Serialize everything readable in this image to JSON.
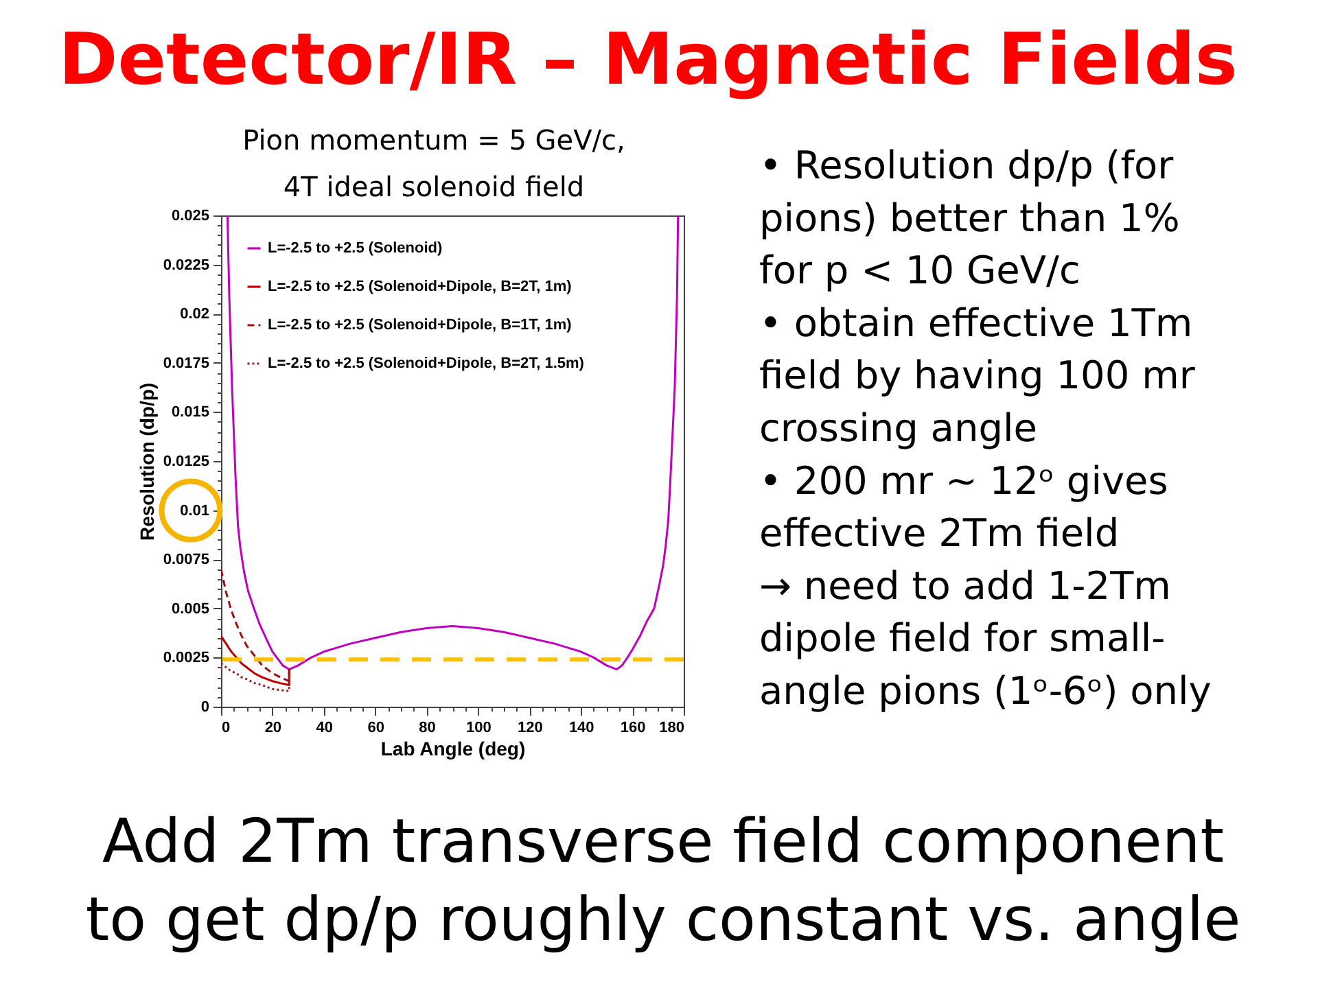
{
  "chart_data": {
    "type": "line",
    "title": "Detector/IR – Magnetic Fields",
    "subtitle": "Pion  momentum = 5 GeV/c,\n4T ideal solenoid field",
    "xlabel": "Lab Angle (deg)",
    "ylabel": "Resolution (dp/p)",
    "xlim": [
      0,
      180
    ],
    "ylim": [
      0,
      0.025
    ],
    "xticks": [
      0,
      {
        "value": 5,
        "label": null
      },
      {
        "value": 10,
        "label": null
      },
      {
        "value": 15,
        "label": null
      },
      20,
      {
        "value": 25,
        "label": null
      },
      {
        "value": 30,
        "label": null
      },
      {
        "value": 35,
        "label": null
      },
      40,
      {
        "value": 45,
        "label": null
      },
      {
        "value": 50,
        "label": null
      },
      {
        "value": 55,
        "label": null
      },
      60,
      {
        "value": 65,
        "label": null
      },
      {
        "value": 70,
        "label": null
      },
      {
        "value": 75,
        "label": null
      },
      80,
      {
        "value": 85,
        "label": null
      },
      {
        "value": 90,
        "label": null
      },
      {
        "value": 95,
        "label": null
      },
      100,
      {
        "value": 105,
        "label": null
      },
      {
        "value": 110,
        "label": null
      },
      {
        "value": 115,
        "label": null
      },
      120,
      {
        "value": 125,
        "label": null
      },
      {
        "value": 130,
        "label": null
      },
      {
        "value": 135,
        "label": null
      },
      140,
      {
        "value": 145,
        "label": null
      },
      {
        "value": 150,
        "label": null
      },
      {
        "value": 155,
        "label": null
      },
      160,
      {
        "value": 165,
        "label": null
      },
      {
        "value": 170,
        "label": null
      },
      {
        "value": 175,
        "label": null
      },
      180
    ],
    "yticks": [
      0,
      {
        "value": 0.0005,
        "label": null
      },
      {
        "value": 0.001,
        "label": null
      },
      {
        "value": 0.0015,
        "label": null
      },
      {
        "value": 0.002,
        "label": null
      },
      0.0025,
      {
        "value": 0.003,
        "label": null
      },
      {
        "value": 0.0035,
        "label": null
      },
      {
        "value": 0.004,
        "label": null
      },
      {
        "value": 0.0045,
        "label": null
      },
      0.005,
      {
        "value": 0.0055,
        "label": null
      },
      {
        "value": 0.006,
        "label": null
      },
      {
        "value": 0.0065,
        "label": null
      },
      {
        "value": 0.007,
        "label": null
      },
      0.0075,
      {
        "value": 0.008,
        "label": null
      },
      {
        "value": 0.0085,
        "label": null
      },
      {
        "value": 0.009,
        "label": null
      },
      {
        "value": 0.0095,
        "label": null
      },
      0.01,
      {
        "value": 0.0105,
        "label": null
      },
      {
        "value": 0.011,
        "label": null
      },
      {
        "value": 0.0115,
        "label": null
      },
      {
        "value": 0.012,
        "label": null
      },
      0.0125,
      {
        "value": 0.013,
        "label": null
      },
      {
        "value": 0.0135,
        "label": null
      },
      {
        "value": 0.014,
        "label": null
      },
      {
        "value": 0.0145,
        "label": null
      },
      0.015,
      {
        "value": 0.0155,
        "label": null
      },
      {
        "value": 0.016,
        "label": null
      },
      {
        "value": 0.0165,
        "label": null
      },
      {
        "value": 0.017,
        "label": null
      },
      0.0175,
      {
        "value": 0.018,
        "label": null
      },
      {
        "value": 0.0185,
        "label": null
      },
      {
        "value": 0.019,
        "label": null
      },
      {
        "value": 0.0195,
        "label": null
      },
      0.02,
      {
        "value": 0.0205,
        "label": null
      },
      {
        "value": 0.021,
        "label": null
      },
      {
        "value": 0.0215,
        "label": null
      },
      {
        "value": 0.022,
        "label": null
      },
      0.0225,
      {
        "value": 0.023,
        "label": null
      },
      {
        "value": 0.0235,
        "label": null
      },
      {
        "value": 0.024,
        "label": null
      },
      {
        "value": 0.0245,
        "label": null
      },
      0.025
    ],
    "legend": "top left",
    "series": [
      {
        "name": "L=-2.5 to +2.5 (Solenoid)",
        "color": "#c000c0",
        "line_style": "solid",
        "x": [
          2.5,
          3.2,
          4.3,
          5.7,
          6.6,
          7.5,
          8.9,
          10.5,
          12.8,
          15,
          17.8,
          20,
          21.7,
          24,
          26.5,
          30,
          35,
          40,
          45,
          50,
          60,
          70,
          80,
          90,
          100,
          110,
          120,
          130,
          135,
          140,
          145,
          150,
          153.9,
          156,
          158.1,
          160,
          163,
          165.5,
          168.5,
          170.5,
          172,
          173,
          174,
          174.8,
          176.5,
          177.4,
          177.8
        ],
        "values": [
          0.025,
          0.0209,
          0.0162,
          0.0115,
          0.0092,
          0.0081,
          0.0069,
          0.0059,
          0.005,
          0.0042,
          0.0034,
          0.0028,
          0.0025,
          0.0021,
          0.0019,
          0.0021,
          0.0025,
          0.0028,
          0.003,
          0.0032,
          0.0035,
          0.0038,
          0.004,
          0.0041,
          0.004,
          0.0038,
          0.0035,
          0.0032,
          0.003,
          0.0028,
          0.0025,
          0.0021,
          0.0019,
          0.0021,
          0.0025,
          0.0029,
          0.0036,
          0.0043,
          0.005,
          0.0062,
          0.0072,
          0.0082,
          0.0095,
          0.0115,
          0.0162,
          0.0209,
          0.025
        ]
      },
      {
        "name": "L=-2.5 to +2.5 (Solenoid+Dipole, B=2T, 1m)",
        "color": "#c00000",
        "line_style": "solid",
        "x": [
          0,
          2,
          4,
          6,
          8,
          10,
          13,
          16,
          20,
          23,
          26.5,
          26.5
        ],
        "values": [
          0.0036,
          0.0032,
          0.0028,
          0.0025,
          0.0022,
          0.002,
          0.0017,
          0.0015,
          0.0013,
          0.0012,
          0.0011,
          0.0019
        ]
      },
      {
        "name": "L=-2.5 to +2.5 (Solenoid+Dipole, B=1T, 1m)",
        "color": "#a01010",
        "line_style": "dashed",
        "x": [
          0,
          2,
          4,
          6,
          8,
          10,
          13,
          16,
          20,
          23,
          26.5,
          26.5
        ],
        "values": [
          0.007,
          0.0058,
          0.0049,
          0.0042,
          0.0036,
          0.0031,
          0.0026,
          0.0021,
          0.0017,
          0.0015,
          0.0013,
          0.0019
        ]
      },
      {
        "name": "L=-2.5 to +2.5 (Solenoid+Dipole, B=2T, 1.5m)",
        "color": "#902020",
        "line_style": "dotted",
        "x": [
          0,
          2,
          4,
          6,
          8,
          10,
          13,
          16,
          20,
          23,
          26.5,
          26.5
        ],
        "values": [
          0.0022,
          0.002,
          0.0018,
          0.0017,
          0.0015,
          0.0014,
          0.0012,
          0.0011,
          0.0009,
          0.00085,
          0.0008,
          0.0019
        ]
      }
    ],
    "ref_lines": [
      {
        "axis": "y",
        "value": 0.0024,
        "color": "#ffc000",
        "line_style": "dashed"
      }
    ],
    "annotations": [
      "• Resolution dp/p (for\npions) better than 1%\nfor p < 10 GeV/c",
      "• obtain effective 1Tm\nfield by having 100 mr\ncrossing angle",
      "• 200 mr ~ 12ᵒ gives\neffective 2Tm field",
      "→ need to add 1-2Tm\ndipole field for small-\nangle pions (1ᵒ-6ᵒ) only",
      "Add 2Tm transverse field component\nto get dp/p roughly constant vs. angle"
    ]
  }
}
